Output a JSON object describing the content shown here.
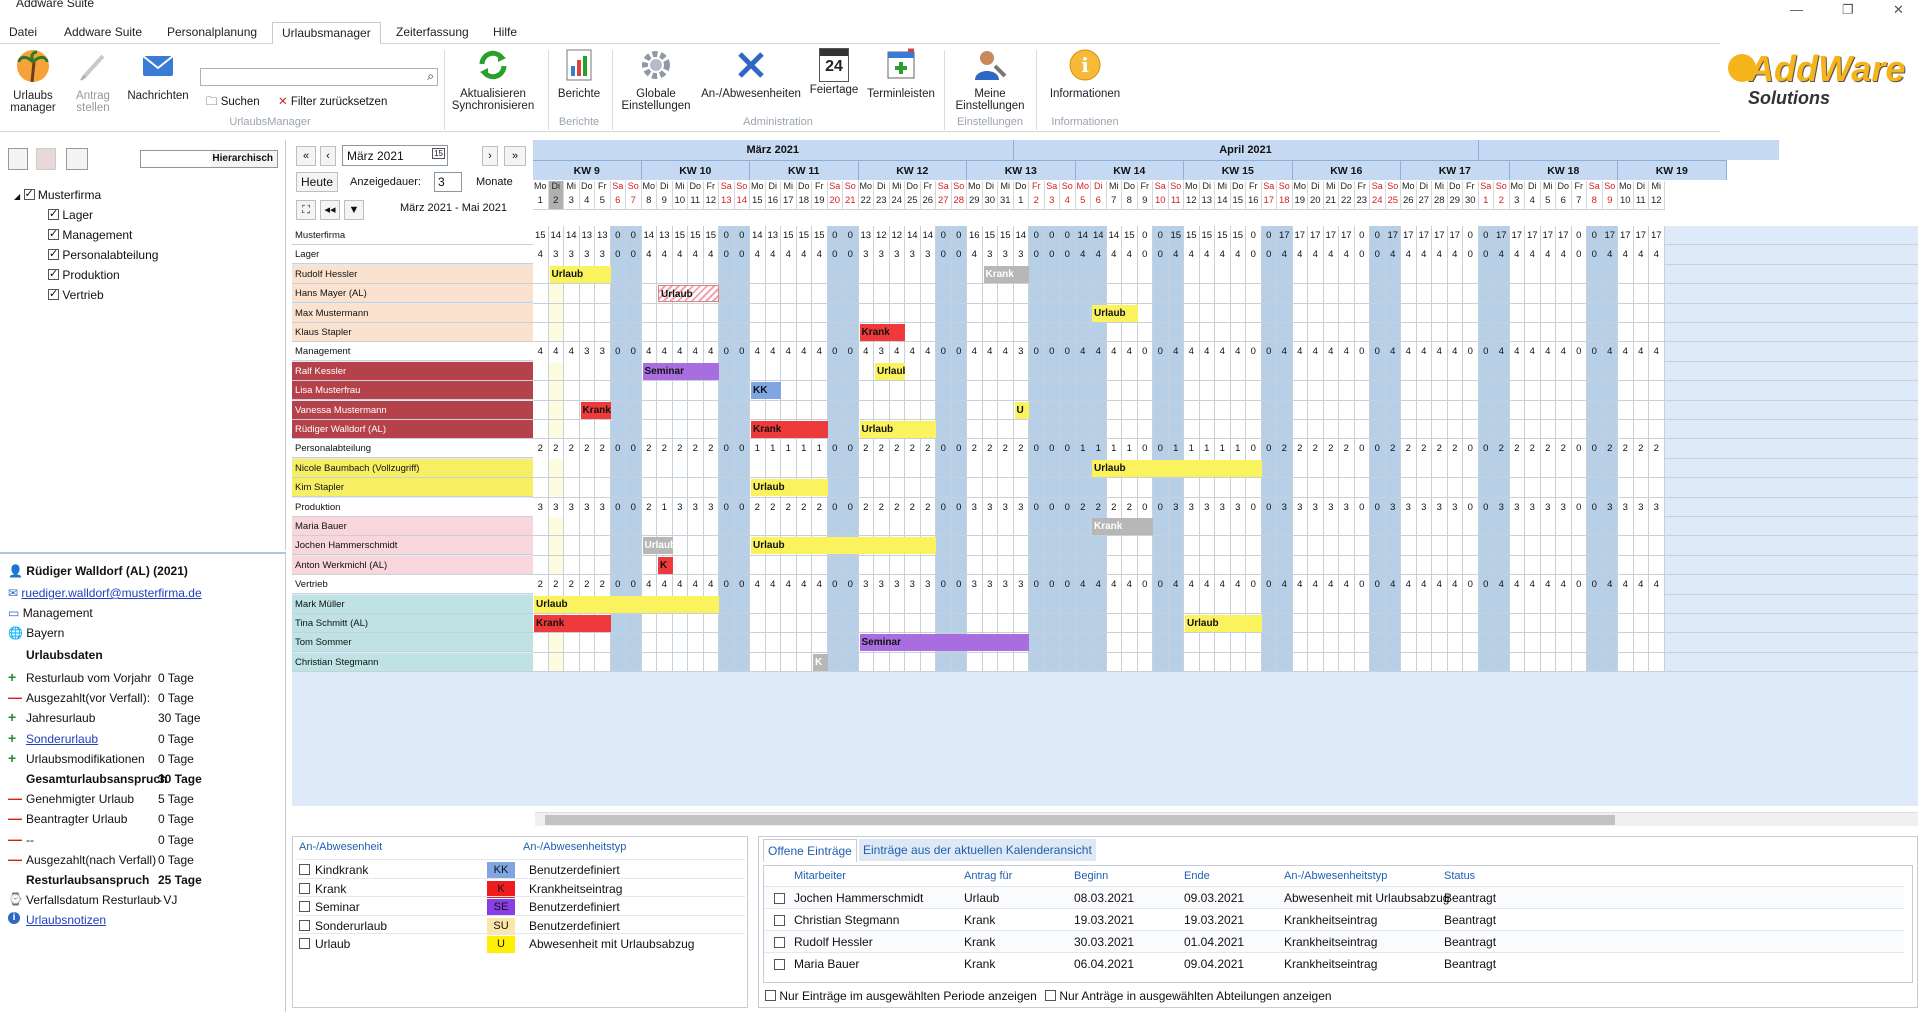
{
  "window": {
    "title": "Addware Suite",
    "controls": [
      "—",
      "❐",
      "✕"
    ]
  },
  "menu": {
    "items": [
      "Datei",
      "Addware Suite",
      "Personalplanung",
      "Urlaubsmanager",
      "Zeiterfassung",
      "Hilfe"
    ],
    "active_index": 3
  },
  "ribbon": {
    "urlaubsmanager": "Urlaubs manager",
    "antrag": "Antrag stellen",
    "nachrichten": "Nachrichten",
    "search_placeholder": "",
    "suchen": "Suchen",
    "filter_reset": "Filter zurücksetzen",
    "group_um": "UrlaubsManager",
    "sync": "Aktualisieren Synchronisieren",
    "berichte": "Berichte",
    "group_berichte": "Berichte",
    "globale": "Globale Einstellungen",
    "anab": "An-/Abwesenheiten",
    "feiertage": "Feiertage",
    "terminleisten": "Terminleisten",
    "group_admin": "Administration",
    "meine": "Meine Einstellungen",
    "group_einst": "Einstellungen",
    "info": "Informationen",
    "group_info": "Informationen",
    "calendar_day": "24"
  },
  "logo": {
    "title": "AddWare",
    "subtitle": "Solutions"
  },
  "tree": {
    "hierarchisch": "Hierarchisch",
    "root": "Musterfirma",
    "children": [
      "Lager",
      "Management",
      "Personalabteilung",
      "Produktion",
      "Vertrieb"
    ]
  },
  "detail": {
    "name": "Rüdiger Walldorf  (AL) (2021)",
    "email": "ruediger.walldorf@musterfirma.de",
    "dept": "Management",
    "state": "Bayern",
    "section": "Urlaubsdaten",
    "rows": [
      {
        "type": "plus",
        "label": "Resturlaub vom Vorjahr",
        "value": "0 Tage"
      },
      {
        "type": "minus",
        "label": "Ausgezahlt(vor Verfall):",
        "value": "0 Tage"
      },
      {
        "type": "plus",
        "label": "Jahresurlaub",
        "value": "30 Tage"
      },
      {
        "type": "plus",
        "label": "Sonderurlaub",
        "value": "0 Tage",
        "link": true
      },
      {
        "type": "plus",
        "label": "Urlaubsmodifikationen",
        "value": "0 Tage"
      },
      {
        "type": "bold",
        "label": "Gesamturlaubsanspruch",
        "value": "30 Tage"
      },
      {
        "type": "minus",
        "label": "Genehmigter Urlaub",
        "value": "5 Tage"
      },
      {
        "type": "minus",
        "label": "Beantragter Urlaub",
        "value": "0 Tage"
      },
      {
        "type": "minus",
        "label": "--",
        "value": "0 Tage"
      },
      {
        "type": "minus",
        "label": "Ausgezahlt(nach Verfall)",
        "value": "0 Tage"
      },
      {
        "type": "bold",
        "label": "Resturlaubsanspruch",
        "value": "25 Tage"
      },
      {
        "type": "icon",
        "label": "Verfallsdatum Resturlaub VJ",
        "value": "-"
      },
      {
        "type": "info",
        "label": "Urlaubsnotizen",
        "value": "",
        "link": true
      }
    ]
  },
  "calnav": {
    "month": "März 2021",
    "heute": "Heute",
    "anzeigedauer": "Anzeigedauer:",
    "dauer": "3",
    "monate": "Monate",
    "range": "März 2021 - Mai 2021"
  },
  "months": [
    {
      "label": "März 2021",
      "days": 31
    },
    {
      "label": "April 2021",
      "days": 30
    }
  ],
  "weeks": [
    "KW 9",
    "KW 10",
    "KW 11",
    "KW 12",
    "KW 13",
    "KW 14",
    "KW 15",
    "KW 16",
    "KW 17",
    "KW 18",
    "KW 19"
  ],
  "weekday_names": [
    "Mo",
    "Di",
    "Mi",
    "Do",
    "Fr",
    "Sa",
    "So"
  ],
  "calendar": {
    "start_weekday": 0,
    "today_index": 1
  },
  "holidays": [
    32,
    35,
    36
  ],
  "rows": [
    {
      "name": "Musterfirma",
      "type": "total",
      "counts": "15 14 14 13 13 0 0 14 13 15 15 15 0 0 14 13 15 15 15 0 0 13 12 12 14 14 0 0 16 15 15 14 0 0 0 14 14 14 15 0 0 15 15 15 15 15 0 0 17 17 17 17 17 0 0 17 17 17 17 17 0 0 17 17 17 17 17 0 0 17 17 17 17"
    },
    {
      "name": "Lager",
      "type": "dept",
      "counts": "4 3 3 3 3 0 0 4 4 4 4 4 0 0 4 4 4 4 4 0 0 3 3 3 3 3 0 0 4 3 3 3 0 0 0 4 4 4 4 0 0 4 4 4 4 4 0 0 4 4 4 4 4 0 0 4 4 4 4 4 0 0 4 4 4 4 4 0 0 4 4 4 4"
    },
    {
      "name": "Rudolf Hessler",
      "type": "emp",
      "group": "lager",
      "bars": [
        {
          "start": 1,
          "len": 4,
          "label": "Urlaub",
          "kind": "urlaub"
        },
        {
          "start": 29,
          "len": 3,
          "label": "Krank",
          "kind": "grey"
        }
      ]
    },
    {
      "name": "Hans Mayer (AL)",
      "type": "emp",
      "group": "lager",
      "bars": [
        {
          "start": 8,
          "len": 4,
          "label": "Urlaub",
          "kind": "pending"
        }
      ]
    },
    {
      "name": "Max  Mustermann",
      "type": "emp",
      "group": "lager",
      "bars": [
        {
          "start": 36,
          "len": 3,
          "label": "Urlaub",
          "kind": "urlaub"
        }
      ]
    },
    {
      "name": "Klaus Stapler",
      "type": "emp",
      "group": "lager",
      "bars": [
        {
          "start": 21,
          "len": 3,
          "label": "Krank",
          "kind": "krank"
        }
      ]
    },
    {
      "name": "Management",
      "type": "dept",
      "counts": "4 4 4 3 3 0 0 4 4 4 4 4 0 0 4 4 4 4 4 0 0 4 3 4 4 4 0 0 4 4 4 3 0 0 0 4 4 4 4 0 0 4 4 4 4 4 0 0 4 4 4 4 4 0 0 4 4 4 4 4 0 0 4 4 4 4 4 0 0 4 4 4 4"
    },
    {
      "name": "Ralf Kessler",
      "type": "emp",
      "group": "mgmt",
      "bars": [
        {
          "start": 7,
          "len": 5,
          "label": "Seminar",
          "kind": "seminar"
        },
        {
          "start": 22,
          "len": 2,
          "label": "Urlaub",
          "kind": "urlaub"
        }
      ]
    },
    {
      "name": "Lisa  Musterfrau",
      "type": "emp",
      "group": "mgmt",
      "bars": [
        {
          "start": 14,
          "len": 2,
          "label": "KK",
          "kind": "kk"
        }
      ]
    },
    {
      "name": "Vanessa  Mustermann",
      "type": "emp",
      "group": "mgmt",
      "bars": [
        {
          "start": 3,
          "len": 2,
          "label": "Krank",
          "kind": "krank"
        },
        {
          "start": 31,
          "len": 1,
          "label": "U",
          "kind": "urlaub"
        }
      ]
    },
    {
      "name": "Rüdiger Walldorf  (AL)",
      "type": "emp",
      "group": "mgmt",
      "bars": [
        {
          "start": 14,
          "len": 5,
          "label": "Krank",
          "kind": "krank"
        },
        {
          "start": 21,
          "len": 5,
          "label": "Urlaub",
          "kind": "urlaub"
        }
      ]
    },
    {
      "name": "Personalabteilung",
      "type": "dept",
      "counts": "2 2 2 2 2 0 0 2 2 2 2 2 0 0 1 1 1 1 1 0 0 2 2 2 2 2 0 0 2 2 2 2 0 0 0 1 1 1 1 0 0 1 1 1 1 1 0 0 2 2 2 2 2 0 0 2 2 2 2 2 0 0 2 2 2 2 2 0 0 2 2 2 2"
    },
    {
      "name": "Nicole Baumbach (Vollzugriff)",
      "type": "emp",
      "group": "pers",
      "bars": [
        {
          "start": 36,
          "len": 11,
          "label": "Urlaub",
          "kind": "urlaub"
        }
      ]
    },
    {
      "name": "Kim Stapler",
      "type": "emp",
      "group": "pers",
      "bars": [
        {
          "start": 14,
          "len": 5,
          "label": "Urlaub",
          "kind": "urlaub"
        }
      ]
    },
    {
      "name": "Produktion",
      "type": "dept",
      "counts": "3 3 3 3 3 0 0 2 1 3 3 3 0 0 2 2 2 2 2 0 0 2 2 2 2 2 0 0 3 3 3 3 0 0 0 2 2 2 2 0 0 3 3 3 3 3 0 0 3 3 3 3 3 0 0 3 3 3 3 3 0 0 3 3 3 3 3 0 0 3 3 3 3"
    },
    {
      "name": "Maria Bauer",
      "type": "emp",
      "group": "prod",
      "bars": [
        {
          "start": 36,
          "len": 4,
          "label": "Krank",
          "kind": "grey"
        }
      ]
    },
    {
      "name": "Jochen Hammerschmidt",
      "type": "emp",
      "group": "prod",
      "bars": [
        {
          "start": 7,
          "len": 2,
          "label": "Urlaub",
          "kind": "grey"
        },
        {
          "start": 14,
          "len": 12,
          "label": "Urlaub",
          "kind": "urlaub"
        }
      ]
    },
    {
      "name": "Anton Werkmichl (AL)",
      "type": "emp",
      "group": "prod",
      "bars": [
        {
          "start": 8,
          "len": 1,
          "label": "K",
          "kind": "krank"
        }
      ]
    },
    {
      "name": "Vertrieb",
      "type": "dept",
      "counts": "2 2 2 2 2 0 0 4 4 4 4 4 0 0 4 4 4 4 4 0 0 3 3 3 3 3 0 0 3 3 3 3 0 0 0 4 4 4 4 0 0 4 4 4 4 4 0 0 4 4 4 4 4 0 0 4 4 4 4 4 0 0 4 4 4 4 4 0 0 4 4 4 4"
    },
    {
      "name": "Mark Müller",
      "type": "emp",
      "group": "vert",
      "bars": [
        {
          "start": 0,
          "len": 12,
          "label": "Urlaub",
          "kind": "urlaub"
        }
      ]
    },
    {
      "name": "Tina Schmitt (AL)",
      "type": "emp",
      "group": "vert",
      "bars": [
        {
          "start": 0,
          "len": 5,
          "label": "Krank",
          "kind": "krank"
        },
        {
          "start": 42,
          "len": 5,
          "label": "Urlaub",
          "kind": "urlaub"
        }
      ]
    },
    {
      "name": "Tom  Sommer",
      "type": "emp",
      "group": "vert",
      "bars": [
        {
          "start": 21,
          "len": 11,
          "label": "Seminar",
          "kind": "seminar"
        }
      ]
    },
    {
      "name": "Christian Stegmann",
      "type": "emp",
      "group": "vert",
      "bars": [
        {
          "start": 18,
          "len": 1,
          "label": "K",
          "kind": "grey"
        }
      ]
    }
  ],
  "colors": {
    "lager": "#fbe2cf",
    "mgmt": "#b5424a",
    "pers": "#f6ef63",
    "prod": "#f9d6dc",
    "vert": "#bfe3e4",
    "urlaub": "#fbf35d",
    "krank": "#ee3a3a",
    "seminar": "#a86ee0",
    "kk": "#7fa6e2",
    "grey": "#b7b7b7",
    "weekend": "#b8cfe8"
  },
  "legend": {
    "col1": "An-/Abwesenheit",
    "col2": "An-/Abwesenheitstyp",
    "items": [
      {
        "name": "Kindkrank",
        "code": "KK",
        "color": "#7fa6e2",
        "type": "Benutzerdefiniert"
      },
      {
        "name": "Krank",
        "code": "K",
        "color": "#ee1c1c",
        "type": "Krankheitseintrag"
      },
      {
        "name": "Seminar",
        "code": "SE",
        "color": "#8a3ee8",
        "type": "Benutzerdefiniert"
      },
      {
        "name": "Sonderurlaub",
        "code": "SU",
        "color": "#fbe6a8",
        "type": "Benutzerdefiniert"
      },
      {
        "name": "Urlaub",
        "code": "U",
        "color": "#ffef00",
        "type": "Abwesenheit mit Urlaubsabzug"
      }
    ]
  },
  "entries": {
    "tab1": "Offene Einträge",
    "tab2": "Einträge aus der aktuellen Kalenderansicht",
    "headers": [
      "Mitarbeiter",
      "Antrag für",
      "Beginn",
      "Ende",
      "An-/Abwesenheitstyp",
      "Status"
    ],
    "rows": [
      [
        "Jochen Hammerschmidt",
        "Urlaub",
        "08.03.2021",
        "09.03.2021",
        "Abwesenheit mit Urlaubsabzug",
        "Beantragt"
      ],
      [
        "Christian Stegmann",
        "Krank",
        "19.03.2021",
        "19.03.2021",
        "Krankheitseintrag",
        "Beantragt"
      ],
      [
        "Rudolf Hessler",
        "Krank",
        "30.03.2021",
        "01.04.2021",
        "Krankheitseintrag",
        "Beantragt"
      ],
      [
        "Maria Bauer",
        "Krank",
        "06.04.2021",
        "09.04.2021",
        "Krankheitseintrag",
        "Beantragt"
      ]
    ],
    "opt1": "Nur Einträge im ausgewählten Periode anzeigen",
    "opt2": "Nur Anträge in ausgewählten Abteilungen anzeigen"
  }
}
